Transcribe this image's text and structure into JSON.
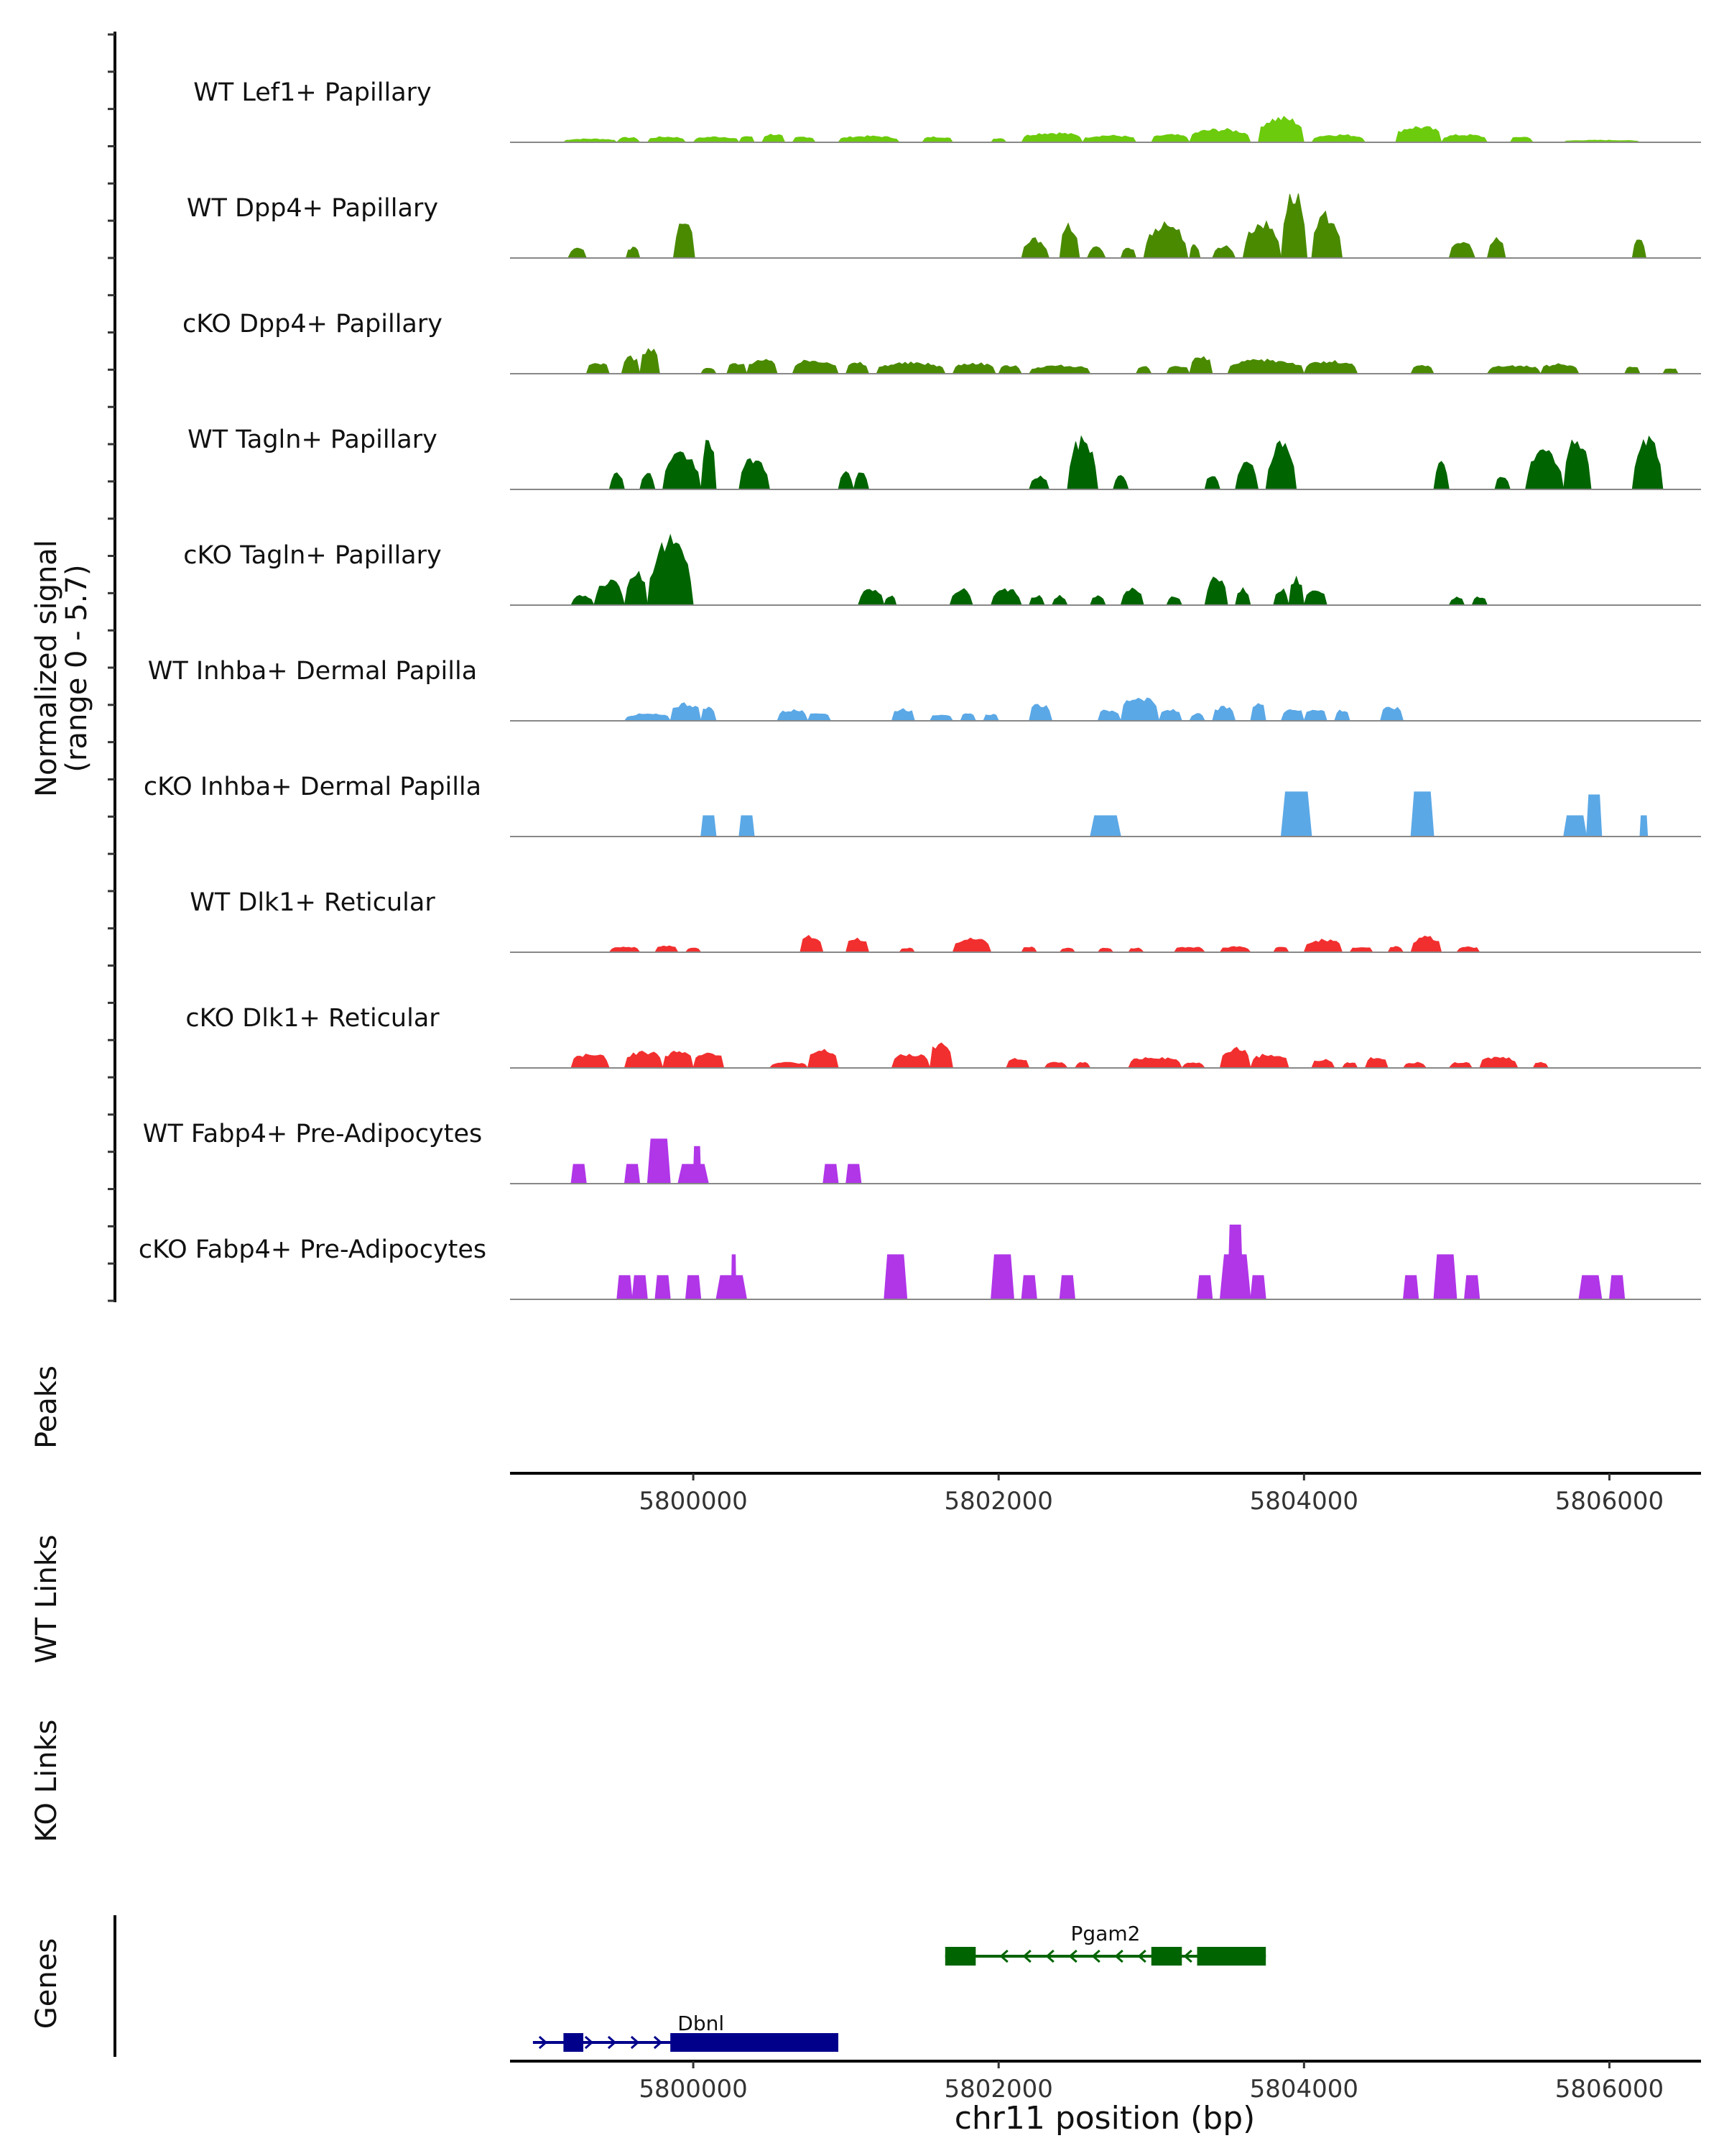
{
  "chart_data": {
    "type": "area",
    "region": "chr11",
    "xlim": [
      5798800,
      5806600
    ],
    "x_ticks": [
      5800000,
      5802000,
      5804000,
      5806000
    ],
    "x_tick_labels": [
      "5800000",
      "5802000",
      "5804000",
      "5806000"
    ],
    "xlabel": "chr11 position (bp)",
    "ylabel_line1": "Normalized signal",
    "ylabel_line2": "(range 0 - 5.7)",
    "ylim": [
      0,
      5.7
    ],
    "panel_labels": {
      "peaks": "Peaks",
      "wt_links": "WT Links",
      "ko_links": "KO Links",
      "genes": "Genes"
    },
    "tracks": [
      {
        "name": "WT Lef1+ Papillary",
        "color": "#6CCB0C",
        "profile": "smooth",
        "regions": [
          [
            5799150,
            5799500,
            0.25
          ],
          [
            5799500,
            5799650,
            0.35
          ],
          [
            5799700,
            5799950,
            0.4
          ],
          [
            5800000,
            5800300,
            0.4
          ],
          [
            5800300,
            5800400,
            0.45
          ],
          [
            5800450,
            5800600,
            0.6
          ],
          [
            5800650,
            5800800,
            0.4
          ],
          [
            5800950,
            5801350,
            0.45
          ],
          [
            5801500,
            5801700,
            0.4
          ],
          [
            5801950,
            5802050,
            0.3
          ],
          [
            5802150,
            5802550,
            0.7
          ],
          [
            5802550,
            5802900,
            0.5
          ],
          [
            5803000,
            5803250,
            0.55
          ],
          [
            5803250,
            5803650,
            0.95
          ],
          [
            5803700,
            5804000,
            1.8
          ],
          [
            5804050,
            5804400,
            0.55
          ],
          [
            5804600,
            5804900,
            1.15
          ],
          [
            5804900,
            5805200,
            0.55
          ],
          [
            5805350,
            5805500,
            0.4
          ],
          [
            5805700,
            5806200,
            0.15
          ]
        ]
      },
      {
        "name": "WT Dpp4+ Papillary",
        "color": "#4A8A00",
        "profile": "peaky",
        "regions": [
          [
            5799180,
            5799300,
            0.8
          ],
          [
            5799560,
            5799650,
            0.8
          ],
          [
            5799870,
            5800010,
            2.8
          ],
          [
            5802150,
            5802330,
            1.4
          ],
          [
            5802400,
            5802530,
            2.4
          ],
          [
            5802580,
            5802700,
            0.8
          ],
          [
            5802800,
            5802900,
            0.8
          ],
          [
            5802950,
            5803240,
            2.6
          ],
          [
            5803250,
            5803320,
            1.0
          ],
          [
            5803400,
            5803550,
            0.9
          ],
          [
            5803600,
            5803850,
            2.6
          ],
          [
            5803850,
            5804020,
            4.8
          ],
          [
            5804050,
            5804250,
            3.2
          ],
          [
            5804950,
            5805120,
            1.2
          ],
          [
            5805200,
            5805320,
            1.4
          ],
          [
            5806150,
            5806240,
            1.4
          ]
        ]
      },
      {
        "name": "cKO Dpp4+ Papillary",
        "color": "#4A8A00",
        "profile": "smooth",
        "regions": [
          [
            5799300,
            5799450,
            0.8
          ],
          [
            5799530,
            5799650,
            1.2
          ],
          [
            5799650,
            5799780,
            1.8
          ],
          [
            5800050,
            5800150,
            0.4
          ],
          [
            5800220,
            5800350,
            0.8
          ],
          [
            5800350,
            5800550,
            1.0
          ],
          [
            5800650,
            5800950,
            1.0
          ],
          [
            5801000,
            5801150,
            0.8
          ],
          [
            5801200,
            5801650,
            0.8
          ],
          [
            5801700,
            5801980,
            0.8
          ],
          [
            5802000,
            5802150,
            0.6
          ],
          [
            5802200,
            5802600,
            0.6
          ],
          [
            5802900,
            5803000,
            0.5
          ],
          [
            5803100,
            5803250,
            0.6
          ],
          [
            5803250,
            5803400,
            1.2
          ],
          [
            5803500,
            5804000,
            1.0
          ],
          [
            5804000,
            5804350,
            0.9
          ],
          [
            5804700,
            5804850,
            0.6
          ],
          [
            5805200,
            5805550,
            0.6
          ],
          [
            5805550,
            5805800,
            0.7
          ],
          [
            5806100,
            5806200,
            0.5
          ],
          [
            5806350,
            5806450,
            0.4
          ]
        ]
      },
      {
        "name": "WT Tagln+ Papillary",
        "color": "#006400",
        "profile": "peaky",
        "regions": [
          [
            5799450,
            5799550,
            1.2
          ],
          [
            5799650,
            5799750,
            1.2
          ],
          [
            5799800,
            5800050,
            2.6
          ],
          [
            5800050,
            5800150,
            3.6
          ],
          [
            5800300,
            5800500,
            2.3
          ],
          [
            5800950,
            5801050,
            1.2
          ],
          [
            5801050,
            5801150,
            1.2
          ],
          [
            5802200,
            5802330,
            1.0
          ],
          [
            5802450,
            5802650,
            3.7
          ],
          [
            5802750,
            5802850,
            1.0
          ],
          [
            5803350,
            5803450,
            1.0
          ],
          [
            5803550,
            5803700,
            2.0
          ],
          [
            5803750,
            5803950,
            3.3
          ],
          [
            5804850,
            5804950,
            2.0
          ],
          [
            5805250,
            5805350,
            1.0
          ],
          [
            5805450,
            5805700,
            2.8
          ],
          [
            5805700,
            5805880,
            3.7
          ],
          [
            5806150,
            5806350,
            3.8
          ]
        ]
      },
      {
        "name": "cKO Tagln+ Papillary",
        "color": "#006400",
        "profile": "peaky",
        "regions": [
          [
            5799200,
            5799350,
            0.7
          ],
          [
            5799350,
            5799550,
            1.8
          ],
          [
            5799550,
            5799700,
            2.6
          ],
          [
            5799700,
            5800000,
            4.8
          ],
          [
            5801080,
            5801250,
            1.2
          ],
          [
            5801250,
            5801330,
            0.7
          ],
          [
            5801680,
            5801830,
            1.2
          ],
          [
            5801950,
            5802150,
            1.2
          ],
          [
            5802200,
            5802300,
            0.7
          ],
          [
            5802350,
            5802450,
            0.7
          ],
          [
            5802600,
            5802700,
            0.7
          ],
          [
            5802800,
            5802950,
            1.2
          ],
          [
            5803100,
            5803200,
            0.7
          ],
          [
            5803350,
            5803500,
            2.0
          ],
          [
            5803550,
            5803650,
            1.2
          ],
          [
            5803800,
            5803900,
            1.2
          ],
          [
            5803900,
            5804000,
            2.0
          ],
          [
            5804000,
            5804150,
            1.2
          ],
          [
            5804950,
            5805050,
            0.6
          ],
          [
            5805100,
            5805200,
            0.6
          ]
        ]
      },
      {
        "name": "WT Inhba+ Dermal Papilla",
        "color": "#5BA8E6",
        "profile": "smooth",
        "regions": [
          [
            5799550,
            5799850,
            0.5
          ],
          [
            5799850,
            5800050,
            1.3
          ],
          [
            5800050,
            5800150,
            1.0
          ],
          [
            5800550,
            5800750,
            0.8
          ],
          [
            5800750,
            5800900,
            0.6
          ],
          [
            5801300,
            5801450,
            0.9
          ],
          [
            5801550,
            5801700,
            0.5
          ],
          [
            5801750,
            5801850,
            0.5
          ],
          [
            5801900,
            5802000,
            0.5
          ],
          [
            5802200,
            5802350,
            1.2
          ],
          [
            5802650,
            5802800,
            0.8
          ],
          [
            5802800,
            5803050,
            1.8
          ],
          [
            5803050,
            5803200,
            0.8
          ],
          [
            5803250,
            5803350,
            0.5
          ],
          [
            5803400,
            5803550,
            1.0
          ],
          [
            5803650,
            5803750,
            1.3
          ],
          [
            5803850,
            5804000,
            0.9
          ],
          [
            5804000,
            5804150,
            0.9
          ],
          [
            5804200,
            5804300,
            0.8
          ],
          [
            5804500,
            5804650,
            1.0
          ]
        ]
      },
      {
        "name": "cKO Inhba+ Dermal Papilla",
        "color": "#5BA8E6",
        "profile": "blocky",
        "regions": [
          [
            5800050,
            5800150,
            1.4
          ],
          [
            5800300,
            5800400,
            1.4
          ],
          [
            5802600,
            5802800,
            1.4
          ],
          [
            5803850,
            5804050,
            3.0
          ],
          [
            5804700,
            5804850,
            3.0
          ],
          [
            5805700,
            5805850,
            1.4
          ],
          [
            5805850,
            5805950,
            2.8
          ],
          [
            5806200,
            5806250,
            1.4
          ]
        ]
      },
      {
        "name": "WT Dlk1+ Reticular",
        "color": "#F22F2F",
        "profile": "smooth",
        "regions": [
          [
            5799450,
            5799650,
            0.4
          ],
          [
            5799750,
            5799900,
            0.5
          ],
          [
            5799950,
            5800050,
            0.3
          ],
          [
            5800700,
            5800850,
            1.2
          ],
          [
            5801000,
            5801150,
            1.0
          ],
          [
            5801350,
            5801450,
            0.3
          ],
          [
            5801700,
            5801950,
            1.0
          ],
          [
            5802150,
            5802250,
            0.4
          ],
          [
            5802400,
            5802500,
            0.3
          ],
          [
            5802650,
            5802750,
            0.3
          ],
          [
            5802850,
            5802950,
            0.3
          ],
          [
            5803150,
            5803350,
            0.4
          ],
          [
            5803450,
            5803650,
            0.4
          ],
          [
            5803800,
            5803900,
            0.4
          ],
          [
            5804000,
            5804250,
            0.9
          ],
          [
            5804300,
            5804450,
            0.4
          ],
          [
            5804550,
            5804650,
            0.4
          ],
          [
            5804700,
            5804900,
            1.1
          ],
          [
            5805000,
            5805150,
            0.4
          ]
        ]
      },
      {
        "name": "cKO Dlk1+ Reticular",
        "color": "#F22F2F",
        "profile": "smooth",
        "regions": [
          [
            5799200,
            5799450,
            1.0
          ],
          [
            5799550,
            5799800,
            1.2
          ],
          [
            5799800,
            5800000,
            1.2
          ],
          [
            5800000,
            5800200,
            1.2
          ],
          [
            5800500,
            5800750,
            0.4
          ],
          [
            5800750,
            5800950,
            1.3
          ],
          [
            5801300,
            5801550,
            1.0
          ],
          [
            5801550,
            5801700,
            1.8
          ],
          [
            5802050,
            5802200,
            0.7
          ],
          [
            5802300,
            5802450,
            0.4
          ],
          [
            5802500,
            5802600,
            0.4
          ],
          [
            5802850,
            5803200,
            0.8
          ],
          [
            5803200,
            5803350,
            0.4
          ],
          [
            5803450,
            5803650,
            1.5
          ],
          [
            5803650,
            5803900,
            1.0
          ],
          [
            5804050,
            5804200,
            0.6
          ],
          [
            5804250,
            5804350,
            0.4
          ],
          [
            5804400,
            5804550,
            0.8
          ],
          [
            5804650,
            5804800,
            0.4
          ],
          [
            5804950,
            5805100,
            0.4
          ],
          [
            5805150,
            5805400,
            0.8
          ],
          [
            5805500,
            5805600,
            0.4
          ]
        ]
      },
      {
        "name": "WT Fabp4+ Pre-Adipocytes",
        "color": "#B036E8",
        "profile": "blocky",
        "regions": [
          [
            5799200,
            5799300,
            1.3
          ],
          [
            5799550,
            5799650,
            1.3
          ],
          [
            5799700,
            5799850,
            3.0
          ],
          [
            5799900,
            5800100,
            1.3
          ],
          [
            5800000,
            5800050,
            2.5
          ],
          [
            5800850,
            5800950,
            1.3
          ],
          [
            5801000,
            5801100,
            1.3
          ]
        ]
      },
      {
        "name": "cKO Fabp4+ Pre-Adipocytes",
        "color": "#B036E8",
        "profile": "blocky",
        "regions": [
          [
            5799500,
            5799600,
            1.6
          ],
          [
            5799600,
            5799700,
            1.6
          ],
          [
            5799750,
            5799850,
            1.6
          ],
          [
            5799950,
            5800050,
            1.6
          ],
          [
            5800150,
            5800350,
            1.6
          ],
          [
            5800250,
            5800280,
            3.0
          ],
          [
            5801250,
            5801400,
            3.0
          ],
          [
            5801950,
            5802100,
            3.0
          ],
          [
            5802150,
            5802250,
            1.6
          ],
          [
            5802400,
            5802500,
            1.6
          ],
          [
            5803300,
            5803400,
            1.6
          ],
          [
            5803450,
            5803650,
            3.0
          ],
          [
            5803500,
            5803600,
            5.0
          ],
          [
            5803650,
            5803750,
            1.6
          ],
          [
            5804650,
            5804750,
            1.6
          ],
          [
            5804850,
            5805000,
            3.0
          ],
          [
            5805050,
            5805150,
            1.6
          ],
          [
            5805800,
            5805950,
            1.6
          ],
          [
            5806000,
            5806100,
            1.6
          ]
        ]
      }
    ],
    "genes": [
      {
        "name": "Pgam2",
        "color": "#006400",
        "strand": "-",
        "start": 5801650,
        "end": 5803750,
        "exons": [
          [
            5801650,
            5801850
          ],
          [
            5803000,
            5803200
          ],
          [
            5803300,
            5803750
          ]
        ]
      },
      {
        "name": "Dbnl",
        "color": "#00008B",
        "strand": "+",
        "start": 5798950,
        "end": 5800950,
        "exons": [
          [
            5799150,
            5799280
          ],
          [
            5799850,
            5800950
          ]
        ]
      }
    ]
  }
}
